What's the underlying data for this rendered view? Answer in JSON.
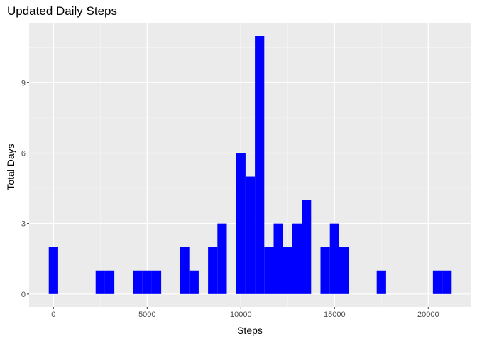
{
  "chart_data": {
    "type": "bar",
    "title": "Updated Daily Steps",
    "xlabel": "Steps",
    "ylabel": "Total Days",
    "bin_width": 500,
    "bins": [
      {
        "x": 0,
        "count": 2
      },
      {
        "x": 2500,
        "count": 1
      },
      {
        "x": 3000,
        "count": 1
      },
      {
        "x": 4500,
        "count": 1
      },
      {
        "x": 5000,
        "count": 1
      },
      {
        "x": 5500,
        "count": 1
      },
      {
        "x": 7000,
        "count": 2
      },
      {
        "x": 7500,
        "count": 1
      },
      {
        "x": 8500,
        "count": 2
      },
      {
        "x": 9000,
        "count": 3
      },
      {
        "x": 10000,
        "count": 6
      },
      {
        "x": 10500,
        "count": 5
      },
      {
        "x": 11000,
        "count": 11
      },
      {
        "x": 11500,
        "count": 2
      },
      {
        "x": 12000,
        "count": 3
      },
      {
        "x": 12500,
        "count": 2
      },
      {
        "x": 13000,
        "count": 3
      },
      {
        "x": 13500,
        "count": 4
      },
      {
        "x": 14500,
        "count": 2
      },
      {
        "x": 15000,
        "count": 3
      },
      {
        "x": 15500,
        "count": 2
      },
      {
        "x": 17500,
        "count": 1
      },
      {
        "x": 20500,
        "count": 1
      },
      {
        "x": 21000,
        "count": 1
      }
    ],
    "xlim": [
      -1300,
      22300
    ],
    "ylim": [
      -0.55,
      11.55
    ],
    "x_ticks": [
      0,
      5000,
      10000,
      15000,
      20000
    ],
    "x_tick_labels": [
      "0",
      "5000",
      "10000",
      "15000",
      "20000"
    ],
    "y_ticks": [
      0,
      3,
      6,
      9
    ],
    "y_tick_labels": [
      "0",
      "3",
      "6",
      "9"
    ],
    "grid": true,
    "legend": "none",
    "colors": {
      "bar": "#0000ff",
      "panel": "#ebebeb",
      "grid_major": "#ffffff",
      "grid_minor": "#f5f5f5",
      "tick": "#333333"
    }
  }
}
